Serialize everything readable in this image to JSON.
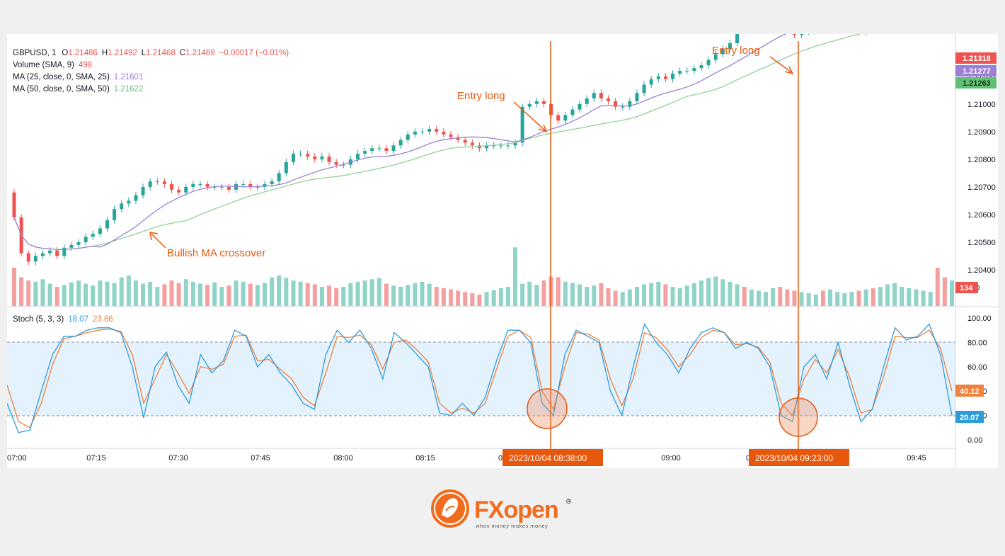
{
  "colors": {
    "up": "#26a69a",
    "down": "#ef5350",
    "ma25": "#9c7fd6",
    "ma50": "#8fd19a",
    "stoch_k": "#2d9cdb",
    "stoch_d": "#f0803c",
    "band_fill": "#e3f2fd",
    "annotation": "#e8580c",
    "legend_value": "#ef5350"
  },
  "legend": {
    "symbol": "GBPUSD, 1",
    "o_label": "O",
    "o_value": "1.21486",
    "h_label": "H",
    "h_value": "1.21492",
    "l_label": "L",
    "l_value": "1.21468",
    "c_label": "C",
    "c_value": "1.21469",
    "change": "−0.00017 (−0.01%)",
    "volume_label": "Volume (SMA, 9)",
    "volume_value": "498",
    "ma25_label": "MA (25, close, 0, SMA, 25)",
    "ma25_value": "1.21601",
    "ma50_label": "MA (50, close, 0, SMA, 50)",
    "ma50_value": "1.21622",
    "stoch_label": "Stoch (5, 3, 3)",
    "stoch_k_value": "18.07",
    "stoch_d_value": "23.66"
  },
  "annotations": {
    "entry_long_1": "Entry long",
    "entry_long_2": "Entry long",
    "crossover": "Bullish MA crossover",
    "time_badge_1": "2023/10/04  08:38:00",
    "time_badge_2": "2023/10/04  09:23:00"
  },
  "price_badges": {
    "last": "1.21318",
    "ma25": "1.21277",
    "ma50": "1.21263",
    "volume": "134",
    "stoch_d": "40.12",
    "stoch_k": "20.07"
  },
  "logo": {
    "brand": "FXopen",
    "tagline": "when money makes money",
    "registered": "®"
  },
  "chart_data": {
    "type": "candlestick",
    "price_axis_ticks": [
      "1.21100",
      "1.21000",
      "1.20900",
      "1.20800",
      "1.20700",
      "1.20600",
      "1.20500",
      "1.20400"
    ],
    "volume_axis_tick": "300",
    "stoch_axis_ticks": [
      "100.00",
      "80.00",
      "60.00",
      "40.00",
      "20.00",
      "0.00"
    ],
    "time_ticks": [
      "07:00",
      "07:15",
      "07:30",
      "07:45",
      "08:00",
      "08:15",
      "09:00",
      "09:45"
    ],
    "time_ticks_partial": [
      "0",
      "0"
    ],
    "ylim_price": [
      1.2035,
      1.2135
    ],
    "stoch_band": [
      20,
      80
    ],
    "close_series": [
      1.2059,
      1.2046,
      1.2043,
      1.2045,
      1.2046,
      1.2047,
      1.2045,
      1.2048,
      1.2049,
      1.205,
      1.2052,
      1.2053,
      1.2055,
      1.2058,
      1.2062,
      1.2064,
      1.2065,
      1.2067,
      1.207,
      1.2072,
      1.2072,
      1.2071,
      1.2069,
      1.2068,
      1.207,
      1.2071,
      1.2071,
      1.207,
      1.207,
      1.207,
      1.2069,
      1.2071,
      1.2071,
      1.207,
      1.207,
      1.2071,
      1.2072,
      1.2075,
      1.2079,
      1.2082,
      1.2082,
      1.2081,
      1.208,
      1.2081,
      1.2079,
      1.2078,
      1.2078,
      1.208,
      1.2082,
      1.2083,
      1.2084,
      1.2084,
      1.2083,
      1.2085,
      1.2087,
      1.2089,
      1.209,
      1.209,
      1.2091,
      1.209,
      1.2089,
      1.2088,
      1.2087,
      1.2086,
      1.2085,
      1.2084,
      1.2085,
      1.2085,
      1.2085,
      1.2085,
      1.2086,
      1.2099,
      1.21,
      1.2101,
      1.21,
      1.2096,
      1.2094,
      1.2096,
      1.2098,
      1.21,
      1.2102,
      1.2104,
      1.2102,
      1.2101,
      1.2099,
      1.2099,
      1.2101,
      1.2104,
      1.2107,
      1.2109,
      1.211,
      1.2109,
      1.2111,
      1.2112,
      1.2112,
      1.2113,
      1.2114,
      1.2116,
      1.2118,
      1.212,
      1.2122,
      1.2128,
      1.2127,
      1.2128,
      1.2129,
      1.213,
      1.2131,
      1.213,
      1.2128,
      1.2125,
      1.2126,
      1.2127,
      1.2128,
      1.2127,
      1.2127,
      1.2127,
      1.2129,
      1.213,
      1.2126,
      1.2128,
      1.2127,
      1.2127,
      1.2127,
      1.2128,
      1.2129,
      1.213,
      1.2131,
      1.2136,
      1.2137,
      1.2133,
      1.2132,
      1.2132
    ],
    "stoch_k": [
      30,
      6,
      8,
      40,
      70,
      85,
      85,
      90,
      92,
      92,
      88,
      60,
      18,
      60,
      72,
      45,
      30,
      70,
      55,
      65,
      90,
      85,
      60,
      70,
      55,
      45,
      30,
      25,
      70,
      90,
      80,
      90,
      75,
      50,
      88,
      80,
      70,
      60,
      22,
      20,
      30,
      20,
      35,
      65,
      90,
      90,
      80,
      30,
      20,
      70,
      90,
      85,
      80,
      40,
      20,
      60,
      95,
      80,
      70,
      55,
      75,
      88,
      92,
      88,
      75,
      80,
      75,
      60,
      20,
      15,
      60,
      70,
      50,
      80,
      45,
      15,
      25,
      60,
      92,
      82,
      85,
      95,
      70,
      20
    ],
    "stoch_d": [
      45,
      15,
      10,
      30,
      62,
      83,
      85,
      88,
      90,
      91,
      89,
      70,
      30,
      50,
      70,
      55,
      38,
      60,
      58,
      62,
      85,
      86,
      65,
      66,
      58,
      50,
      35,
      28,
      55,
      85,
      84,
      86,
      78,
      58,
      80,
      82,
      74,
      64,
      30,
      22,
      26,
      22,
      30,
      58,
      85,
      90,
      84,
      40,
      25,
      60,
      88,
      87,
      82,
      50,
      28,
      50,
      88,
      84,
      74,
      60,
      70,
      84,
      90,
      88,
      78,
      79,
      76,
      64,
      30,
      20,
      50,
      66,
      55,
      74,
      52,
      22,
      25,
      52,
      85,
      84,
      84,
      90,
      75,
      40
    ]
  }
}
